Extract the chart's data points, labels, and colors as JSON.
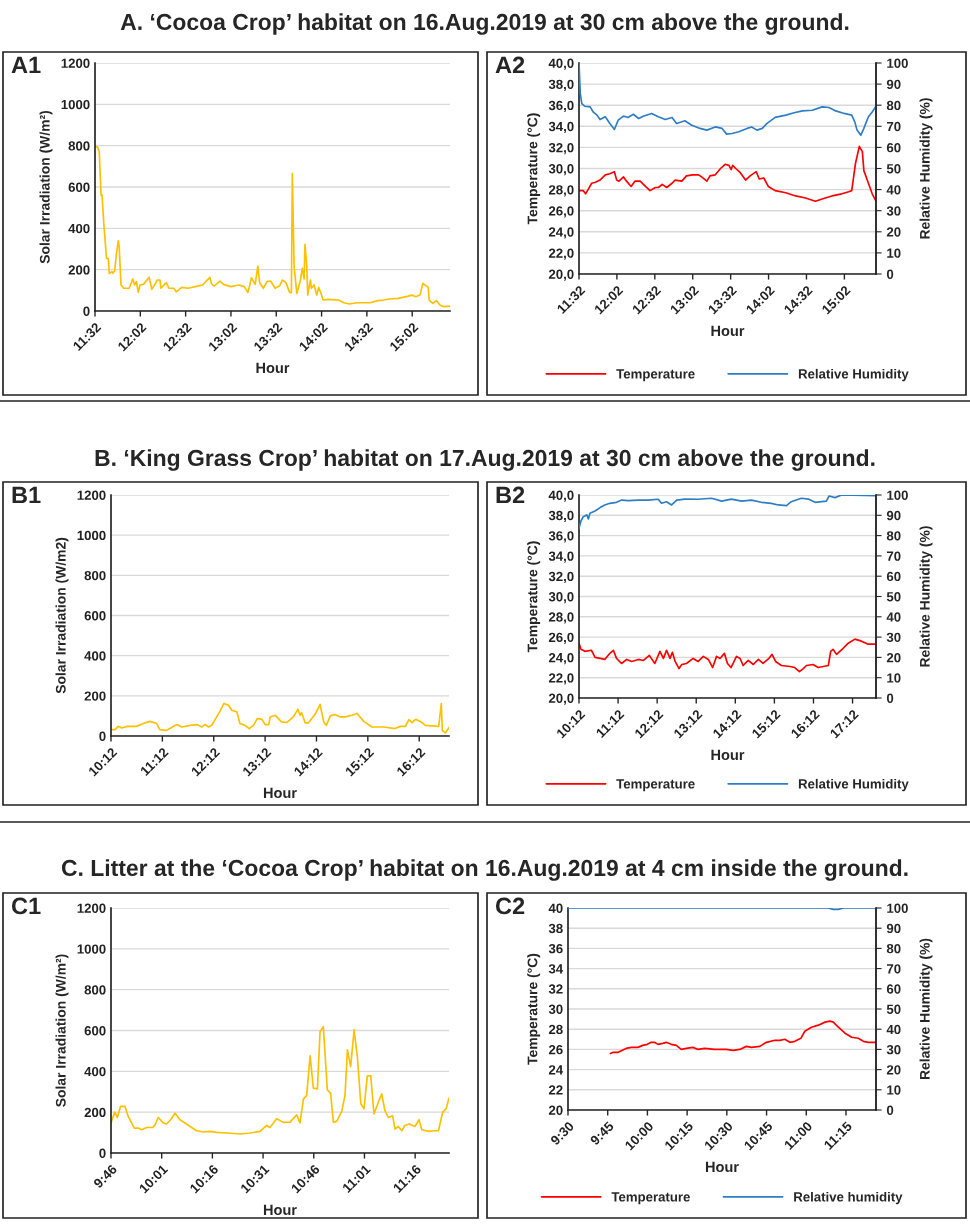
{
  "chart_data": [
    {
      "type": "line",
      "title": "A1",
      "subtitle": "A. ‘Cocoa Crop’ habitat on 16.Aug.2019 at 30 cm above the ground.",
      "xlabel": "Hour",
      "ylabel": "Solar Irradiation (W/m²)",
      "grid": "y",
      "xlim": [
        11.533,
        15.45
      ],
      "xticks": [
        {
          "value": 11.533,
          "label": "11:32"
        },
        {
          "value": 12.033,
          "label": "12:02"
        },
        {
          "value": 12.533,
          "label": "12:32"
        },
        {
          "value": 13.033,
          "label": "13:02"
        },
        {
          "value": 13.533,
          "label": "13:32"
        },
        {
          "value": 14.033,
          "label": "14:02"
        },
        {
          "value": 14.533,
          "label": "14:32"
        },
        {
          "value": 15.033,
          "label": "15:02"
        }
      ],
      "ylim": [
        0,
        1200
      ],
      "yticks": [
        0,
        200,
        400,
        600,
        800,
        1000,
        1200
      ],
      "series": [
        {
          "color": "#ffc000",
          "x": [
            11.533,
            11.56,
            11.58,
            11.6,
            11.61,
            11.63,
            11.65,
            11.66,
            11.68,
            11.69,
            11.72,
            11.73,
            11.75,
            11.77,
            11.79,
            11.8,
            11.82,
            11.85,
            11.91,
            11.95,
            11.97,
            11.99,
            12.01,
            12.03,
            12.07,
            12.13,
            12.16,
            12.2,
            12.22,
            12.25,
            12.26,
            12.32,
            12.35,
            12.4,
            12.43,
            12.49,
            12.56,
            12.64,
            12.72,
            12.8,
            12.82,
            12.85,
            12.91,
            12.95,
            13.03,
            13.12,
            13.18,
            13.22,
            13.26,
            13.3,
            13.33,
            13.35,
            13.39,
            13.43,
            13.47,
            13.52,
            13.57,
            13.6,
            13.64,
            13.68,
            13.7,
            13.71,
            13.73,
            13.76,
            13.8,
            13.82,
            13.84,
            13.85,
            13.87,
            13.88,
            13.91,
            13.92,
            13.95,
            13.98,
            14.0,
            14.02,
            14.05,
            14.11,
            14.22,
            14.28,
            14.34,
            14.42,
            14.57,
            14.65,
            14.72,
            14.78,
            14.88,
            14.99,
            15.03,
            15.07,
            15.12,
            15.15,
            15.21,
            15.22,
            15.26,
            15.3,
            15.34,
            15.38,
            15.45
          ],
          "values": [
            794,
            794,
            770,
            560,
            563,
            424,
            311,
            254,
            254,
            182,
            190,
            182,
            195,
            279,
            340,
            311,
            126,
            110,
            110,
            155,
            126,
            142,
            90,
            126,
            130,
            163,
            105,
            134,
            150,
            150,
            110,
            137,
            110,
            110,
            93,
            114,
            110,
            118,
            126,
            163,
            130,
            121,
            145,
            129,
            118,
            126,
            118,
            89,
            161,
            129,
            217,
            137,
            110,
            142,
            145,
            110,
            122,
            150,
            137,
            90,
            89,
            665,
            214,
            85,
            150,
            206,
            155,
            322,
            214,
            77,
            150,
            110,
            126,
            77,
            114,
            93,
            53,
            56,
            53,
            40,
            34,
            40,
            40,
            50,
            53,
            58,
            61,
            72,
            77,
            69,
            77,
            134,
            114,
            53,
            37,
            50,
            29,
            21,
            24
          ]
        }
      ]
    },
    {
      "type": "line",
      "title": "A2",
      "xlabel": "Hour",
      "ylabel": "Temperature (°C)",
      "y2label": "Relative Humidity (%)",
      "grid": "y",
      "legend": "bottom",
      "xlim": [
        11.533,
        15.45
      ],
      "xticks": [
        {
          "value": 11.533,
          "label": "11:32"
        },
        {
          "value": 12.033,
          "label": "12:02"
        },
        {
          "value": 12.533,
          "label": "12:32"
        },
        {
          "value": 13.033,
          "label": "13:02"
        },
        {
          "value": 13.533,
          "label": "13:32"
        },
        {
          "value": 14.033,
          "label": "14:02"
        },
        {
          "value": 14.533,
          "label": "14:32"
        },
        {
          "value": 15.033,
          "label": "15:02"
        }
      ],
      "ylim": [
        20,
        40
      ],
      "yticks": [
        {
          "value": 20,
          "label": "20,0"
        },
        {
          "value": 22,
          "label": "22,0"
        },
        {
          "value": 24,
          "label": "24,0"
        },
        {
          "value": 26,
          "label": "26,0"
        },
        {
          "value": 28,
          "label": "28,0"
        },
        {
          "value": 30,
          "label": "30,0"
        },
        {
          "value": 32,
          "label": "32,0"
        },
        {
          "value": 34,
          "label": "34,0"
        },
        {
          "value": 36,
          "label": "36,0"
        },
        {
          "value": 38,
          "label": "38,0"
        },
        {
          "value": 40,
          "label": "40,0"
        }
      ],
      "y2lim": [
        0,
        100
      ],
      "y2ticks": [
        0,
        10,
        20,
        30,
        40,
        50,
        60,
        70,
        80,
        90,
        100
      ],
      "series": [
        {
          "name": "Temperature",
          "color": "#ff0000",
          "x": [
            11.533,
            11.57,
            11.59,
            11.62,
            11.66,
            11.7,
            11.75,
            11.81,
            11.88,
            11.94,
            12.0,
            12.03,
            12.06,
            12.12,
            12.16,
            12.22,
            12.27,
            12.34,
            12.41,
            12.47,
            12.54,
            12.58,
            12.63,
            12.69,
            12.76,
            12.8,
            12.89,
            12.95,
            13.03,
            13.11,
            13.15,
            13.22,
            13.26,
            13.33,
            13.4,
            13.46,
            13.51,
            13.54,
            13.56,
            13.6,
            13.66,
            13.73,
            13.79,
            13.87,
            13.91,
            13.97,
            14.03,
            14.12,
            14.26,
            14.39,
            14.52,
            14.65,
            14.78,
            14.87,
            15.0,
            15.09,
            15.13,
            15.18,
            15.23,
            15.27,
            15.29,
            15.35,
            15.4,
            15.45
          ],
          "values": [
            27.9,
            27.9,
            27.9,
            27.6,
            28.1,
            28.6,
            28.7,
            28.9,
            29.4,
            29.5,
            29.7,
            28.9,
            28.8,
            29.2,
            28.8,
            28.3,
            28.8,
            28.8,
            28.3,
            27.9,
            28.2,
            28.2,
            28.5,
            28.2,
            28.6,
            28.9,
            28.8,
            29.3,
            29.4,
            29.4,
            29.2,
            28.8,
            29.3,
            29.4,
            30.0,
            30.4,
            30.3,
            29.9,
            30.3,
            30.0,
            29.6,
            28.9,
            29.3,
            29.7,
            29.0,
            29.1,
            28.3,
            27.9,
            27.7,
            27.4,
            27.2,
            26.9,
            27.2,
            27.4,
            27.6,
            27.8,
            27.9,
            30.5,
            32.1,
            31.6,
            29.8,
            28.6,
            27.6,
            26.9
          ]
        },
        {
          "name": "Relative Humidity",
          "color": "#2e7ec6",
          "axis": "y2",
          "x": [
            11.533,
            11.55,
            11.57,
            11.61,
            11.68,
            11.72,
            11.77,
            11.81,
            11.88,
            11.94,
            12.0,
            12.05,
            12.12,
            12.18,
            12.25,
            12.32,
            12.38,
            12.49,
            12.58,
            12.67,
            12.76,
            12.82,
            12.93,
            13.02,
            13.13,
            13.22,
            13.33,
            13.42,
            13.48,
            13.55,
            13.64,
            13.75,
            13.81,
            13.88,
            13.95,
            14.01,
            14.12,
            14.26,
            14.37,
            14.48,
            14.61,
            14.74,
            14.83,
            14.92,
            15.03,
            15.13,
            15.17,
            15.2,
            15.25,
            15.29,
            15.35,
            15.4,
            15.45
          ],
          "values": [
            100,
            85.5,
            80.8,
            79.5,
            79.2,
            76.8,
            75.3,
            73.2,
            74.5,
            71.3,
            68.5,
            72.9,
            74.8,
            74.2,
            75.7,
            73.7,
            74.8,
            76.1,
            74.5,
            73.2,
            74.2,
            71.3,
            72.6,
            70.5,
            69.0,
            68.2,
            69.7,
            69.0,
            66.3,
            66.6,
            67.4,
            69.0,
            69.7,
            68.2,
            69.0,
            71.3,
            74.2,
            75.3,
            76.4,
            77.3,
            77.6,
            79.2,
            78.9,
            77.3,
            76.1,
            75.3,
            72.1,
            68.2,
            65.8,
            69.0,
            74.5,
            76.8,
            79.5
          ]
        }
      ]
    },
    {
      "type": "line",
      "title": "B1",
      "subtitle": "B. ‘King Grass Crop’ habitat on 17.Aug.2019 at 30 cm above the ground.",
      "xlabel": "Hour",
      "ylabel": "Solar Irradiation (W/m2)",
      "grid": "y",
      "xlim": [
        10.2,
        16.78
      ],
      "xticks": [
        {
          "value": 10.2,
          "label": "10:12"
        },
        {
          "value": 11.2,
          "label": "11:12"
        },
        {
          "value": 12.2,
          "label": "12:12"
        },
        {
          "value": 13.2,
          "label": "13:12"
        },
        {
          "value": 14.2,
          "label": "14:12"
        },
        {
          "value": 15.2,
          "label": "15:12"
        },
        {
          "value": 16.2,
          "label": "16:12"
        }
      ],
      "ylim": [
        0,
        1200
      ],
      "yticks": [
        0,
        200,
        400,
        600,
        800,
        1000,
        1200
      ],
      "series": [
        {
          "color": "#ffc000",
          "x": [
            10.2,
            10.28,
            10.34,
            10.41,
            10.51,
            10.7,
            10.83,
            10.96,
            11.09,
            11.15,
            11.28,
            11.38,
            11.48,
            11.58,
            11.74,
            11.87,
            11.97,
            12.03,
            12.1,
            12.16,
            12.32,
            12.4,
            12.49,
            12.55,
            12.65,
            12.71,
            12.81,
            12.89,
            12.97,
            13.05,
            13.14,
            13.2,
            13.27,
            13.3,
            13.4,
            13.52,
            13.62,
            13.75,
            13.84,
            13.88,
            13.91,
            13.98,
            14.04,
            14.17,
            14.27,
            14.34,
            14.39,
            14.47,
            14.56,
            14.66,
            14.76,
            14.89,
            14.99,
            15.12,
            15.28,
            15.51,
            15.73,
            15.83,
            15.93,
            16.0,
            16.06,
            16.13,
            16.24,
            16.32,
            16.58,
            16.63,
            16.65,
            16.71,
            16.78
          ],
          "values": [
            32,
            32,
            48,
            40,
            48,
            48,
            62,
            73,
            62,
            32,
            28,
            42,
            57,
            45,
            53,
            57,
            45,
            57,
            45,
            53,
            123,
            162,
            153,
            128,
            120,
            62,
            53,
            37,
            53,
            87,
            83,
            57,
            57,
            95,
            103,
            70,
            67,
            95,
            133,
            103,
            117,
            65,
            65,
            107,
            158,
            70,
            53,
            100,
            107,
            95,
            95,
            103,
            112,
            73,
            45,
            45,
            37,
            48,
            48,
            82,
            67,
            83,
            70,
            53,
            48,
            162,
            28,
            15,
            42
          ]
        }
      ]
    },
    {
      "type": "line",
      "title": "B2",
      "xlabel": "Hour",
      "ylabel": "Temperature (°C)",
      "y2label": "Relative Humidity (%)",
      "grid": "y",
      "legend": "bottom",
      "xlim": [
        10.2,
        17.8
      ],
      "xticks": [
        {
          "value": 10.2,
          "label": "10:12"
        },
        {
          "value": 11.2,
          "label": "11:12"
        },
        {
          "value": 12.2,
          "label": "12:12"
        },
        {
          "value": 13.2,
          "label": "13:12"
        },
        {
          "value": 14.2,
          "label": "14:12"
        },
        {
          "value": 15.2,
          "label": "15:12"
        },
        {
          "value": 16.2,
          "label": "16:12"
        },
        {
          "value": 17.2,
          "label": "17:12"
        }
      ],
      "ylim": [
        20,
        40
      ],
      "yticks": [
        {
          "value": 20,
          "label": "20,0"
        },
        {
          "value": 22,
          "label": "22,0"
        },
        {
          "value": 24,
          "label": "24,0"
        },
        {
          "value": 26,
          "label": "26,0"
        },
        {
          "value": 28,
          "label": "28,0"
        },
        {
          "value": 30,
          "label": "30,0"
        },
        {
          "value": 32,
          "label": "32,0"
        },
        {
          "value": 34,
          "label": "34,0"
        },
        {
          "value": 36,
          "label": "36,0"
        },
        {
          "value": 38,
          "label": "38,0"
        },
        {
          "value": 40,
          "label": "40,0"
        }
      ],
      "y2lim": [
        0,
        100
      ],
      "y2ticks": [
        0,
        10,
        20,
        30,
        40,
        50,
        60,
        70,
        80,
        90,
        100
      ],
      "series": [
        {
          "name": "Temperature",
          "color": "#ff0000",
          "x": [
            10.2,
            10.25,
            10.35,
            10.52,
            10.61,
            10.74,
            10.86,
            10.99,
            11.08,
            11.16,
            11.29,
            11.42,
            11.55,
            11.72,
            11.85,
            12.0,
            12.14,
            12.27,
            12.36,
            12.44,
            12.53,
            12.59,
            12.66,
            12.76,
            12.83,
            12.95,
            13.12,
            13.25,
            13.38,
            13.51,
            13.62,
            13.72,
            13.81,
            13.92,
            14.0,
            14.09,
            14.23,
            14.32,
            14.4,
            14.53,
            14.66,
            14.79,
            14.91,
            15.06,
            15.14,
            15.23,
            15.38,
            15.6,
            15.72,
            15.84,
            15.94,
            16.02,
            16.19,
            16.32,
            16.58,
            16.64,
            16.7,
            16.79,
            16.96,
            17.09,
            17.26,
            17.43,
            17.6,
            17.8
          ],
          "values": [
            25.4,
            24.8,
            24.6,
            24.7,
            24.0,
            23.9,
            23.8,
            24.4,
            24.7,
            23.9,
            23.4,
            23.8,
            23.6,
            23.8,
            23.7,
            24.2,
            23.4,
            24.6,
            23.9,
            24.7,
            23.9,
            24.5,
            23.6,
            22.9,
            23.3,
            23.4,
            23.9,
            23.6,
            24.1,
            23.8,
            23.0,
            24.1,
            23.9,
            24.4,
            23.4,
            23.0,
            24.1,
            23.9,
            23.2,
            23.7,
            23.3,
            23.8,
            23.4,
            23.9,
            24.3,
            23.6,
            23.2,
            23.1,
            23.0,
            22.6,
            22.9,
            23.2,
            23.3,
            23.0,
            23.2,
            24.6,
            24.8,
            24.3,
            24.9,
            25.4,
            25.8,
            25.6,
            25.3,
            25.3
          ]
        },
        {
          "name": "Relative Humidity",
          "color": "#2e7ec6",
          "axis": "y2",
          "x": [
            10.2,
            10.25,
            10.31,
            10.4,
            10.44,
            10.48,
            10.61,
            10.74,
            10.86,
            10.99,
            11.16,
            11.29,
            11.46,
            11.72,
            11.97,
            12.23,
            12.31,
            12.44,
            12.57,
            12.7,
            12.91,
            13.25,
            13.59,
            13.85,
            14.1,
            14.36,
            14.61,
            14.87,
            15.12,
            15.3,
            15.51,
            15.63,
            15.89,
            16.07,
            16.24,
            16.53,
            16.6,
            16.75,
            16.92,
            17.8
          ],
          "values": [
            83.6,
            87.2,
            89.3,
            90.2,
            88.2,
            91.0,
            92.1,
            93.8,
            95.1,
            95.9,
            96.4,
            97.5,
            97.2,
            97.5,
            97.5,
            97.9,
            95.9,
            96.7,
            95.1,
            97.5,
            98.0,
            97.9,
            98.4,
            97.0,
            98.0,
            97.0,
            97.5,
            96.4,
            95.9,
            95.1,
            94.8,
            96.7,
            98.4,
            98.0,
            96.4,
            97.0,
            99.5,
            98.7,
            100,
            99.7
          ]
        }
      ]
    },
    {
      "type": "line",
      "title": "C1",
      "subtitle": "C. Litter at the ‘Cocoa Crop’ habitat on 16.Aug.2019 at 4 cm inside the ground.",
      "xlabel": "Hour",
      "ylabel": "Solar Irradiation (W/m²)",
      "grid": "y",
      "xlim": [
        9.767,
        11.434
      ],
      "xticks": [
        {
          "value": 9.767,
          "label": "9:46"
        },
        {
          "value": 10.017,
          "label": "10:01"
        },
        {
          "value": 10.267,
          "label": "10:16"
        },
        {
          "value": 10.517,
          "label": "10:31"
        },
        {
          "value": 10.767,
          "label": "10:46"
        },
        {
          "value": 11.017,
          "label": "11:01"
        },
        {
          "value": 11.267,
          "label": "11:16"
        }
      ],
      "ylim": [
        0,
        1200
      ],
      "yticks": [
        0,
        200,
        400,
        600,
        800,
        1000,
        1200
      ],
      "series": [
        {
          "color": "#ffc000",
          "x": [
            9.767,
            9.775,
            9.786,
            9.798,
            9.814,
            9.836,
            9.852,
            9.882,
            9.902,
            9.918,
            9.943,
            9.972,
            9.984,
            10.0,
            10.025,
            10.041,
            10.061,
            10.083,
            10.107,
            10.132,
            10.157,
            10.189,
            10.222,
            10.255,
            10.288,
            10.337,
            10.404,
            10.453,
            10.502,
            10.535,
            10.551,
            10.584,
            10.617,
            10.65,
            10.683,
            10.699,
            10.716,
            10.732,
            10.749,
            10.765,
            10.785,
            10.798,
            10.814,
            10.834,
            10.85,
            10.864,
            10.88,
            10.905,
            10.921,
            10.933,
            10.949,
            10.966,
            10.982,
            10.999,
            11.015,
            11.031,
            11.048,
            11.064,
            11.081,
            11.102,
            11.118,
            11.135,
            11.156,
            11.168,
            11.184,
            11.201,
            11.217,
            11.238,
            11.266,
            11.286,
            11.3,
            11.333,
            11.357,
            11.382,
            11.403,
            11.42,
            11.434
          ],
          "values": [
            147,
            171,
            200,
            174,
            228,
            228,
            179,
            122,
            122,
            114,
            125,
            125,
            138,
            174,
            147,
            142,
            163,
            195,
            163,
            147,
            130,
            109,
            103,
            106,
            101,
            98,
            93,
            98,
            106,
            135,
            125,
            168,
            150,
            151,
            187,
            147,
            264,
            282,
            476,
            318,
            314,
            594,
            619,
            309,
            293,
            150,
            155,
            204,
            282,
            505,
            423,
            603,
            472,
            241,
            217,
            378,
            378,
            191,
            236,
            290,
            207,
            174,
            182,
            117,
            130,
            109,
            135,
            142,
            130,
            163,
            114,
            106,
            109,
            109,
            200,
            217,
            269
          ]
        }
      ]
    },
    {
      "type": "line",
      "title": "C2",
      "xlabel": "Hour",
      "ylabel": "Temperature (°C)",
      "y2label": "Relative Humidity (%)",
      "grid": "y",
      "legend": "bottom",
      "xlim": [
        9.5,
        11.439
      ],
      "xticks": [
        {
          "value": 9.5,
          "label": "9:30"
        },
        {
          "value": 9.75,
          "label": "9:45"
        },
        {
          "value": 10.0,
          "label": "10:00"
        },
        {
          "value": 10.25,
          "label": "10:15"
        },
        {
          "value": 10.5,
          "label": "10:30"
        },
        {
          "value": 10.75,
          "label": "10:45"
        },
        {
          "value": 11.0,
          "label": "11:00"
        },
        {
          "value": 11.25,
          "label": "11:15"
        }
      ],
      "ylim": [
        20,
        40
      ],
      "yticks": [
        20,
        22,
        24,
        26,
        28,
        30,
        32,
        34,
        36,
        38,
        40
      ],
      "y2lim": [
        0,
        100
      ],
      "y2ticks": [
        0,
        10,
        20,
        30,
        40,
        50,
        60,
        70,
        80,
        90,
        100
      ],
      "series": [
        {
          "name": "Temperature",
          "color": "#ff0000",
          "x": [
            9.767,
            9.782,
            9.813,
            9.839,
            9.866,
            9.898,
            9.94,
            9.971,
            9.999,
            10.024,
            10.045,
            10.066,
            10.097,
            10.118,
            10.15,
            10.182,
            10.213,
            10.245,
            10.287,
            10.318,
            10.36,
            10.423,
            10.497,
            10.539,
            10.581,
            10.623,
            10.655,
            10.708,
            10.749,
            10.802,
            10.834,
            10.865,
            10.897,
            10.928,
            10.966,
            10.991,
            11.033,
            11.076,
            11.118,
            11.149,
            11.17,
            11.202,
            11.244,
            11.286,
            11.328,
            11.359,
            11.391,
            11.439
          ],
          "values": [
            25.6,
            25.7,
            25.7,
            25.9,
            26.1,
            26.2,
            26.2,
            26.4,
            26.5,
            26.7,
            26.7,
            26.5,
            26.6,
            26.7,
            26.5,
            26.4,
            26.0,
            26.1,
            26.2,
            26.0,
            26.1,
            26.0,
            26.0,
            25.9,
            26.0,
            26.3,
            26.2,
            26.3,
            26.7,
            26.9,
            26.9,
            27.0,
            26.7,
            26.8,
            27.1,
            27.8,
            28.2,
            28.4,
            28.7,
            28.8,
            28.7,
            28.2,
            27.6,
            27.2,
            27.1,
            26.8,
            26.7,
            26.7
          ]
        },
        {
          "name": "Relative humidity",
          "color": "#2e7ec6",
          "axis": "y2",
          "x": [
            9.5,
            11.139,
            11.17,
            11.202,
            11.233,
            11.439
          ],
          "values": [
            100,
            100,
            99.3,
            99.3,
            100,
            100
          ]
        }
      ]
    }
  ]
}
